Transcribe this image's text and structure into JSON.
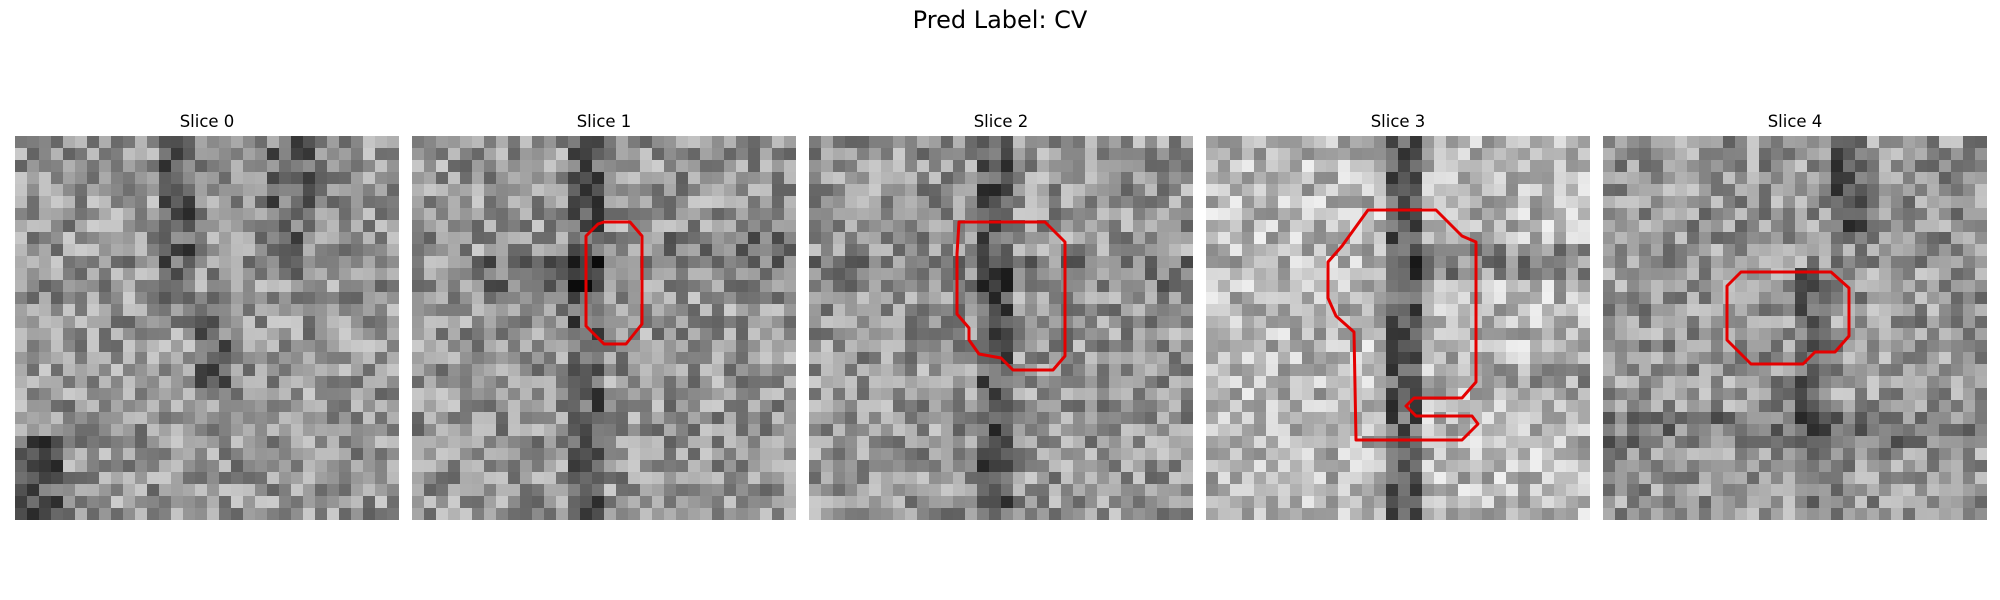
{
  "figure": {
    "title": "Pred Label: CV",
    "colormap": "gray",
    "contour_color": "#e50000",
    "panels": [
      {
        "title": "Slice 0",
        "has_contour": false
      },
      {
        "title": "Slice 1",
        "has_contour": true
      },
      {
        "title": "Slice 2",
        "has_contour": true
      },
      {
        "title": "Slice 3",
        "has_contour": true
      },
      {
        "title": "Slice 4",
        "has_contour": true
      }
    ]
  }
}
